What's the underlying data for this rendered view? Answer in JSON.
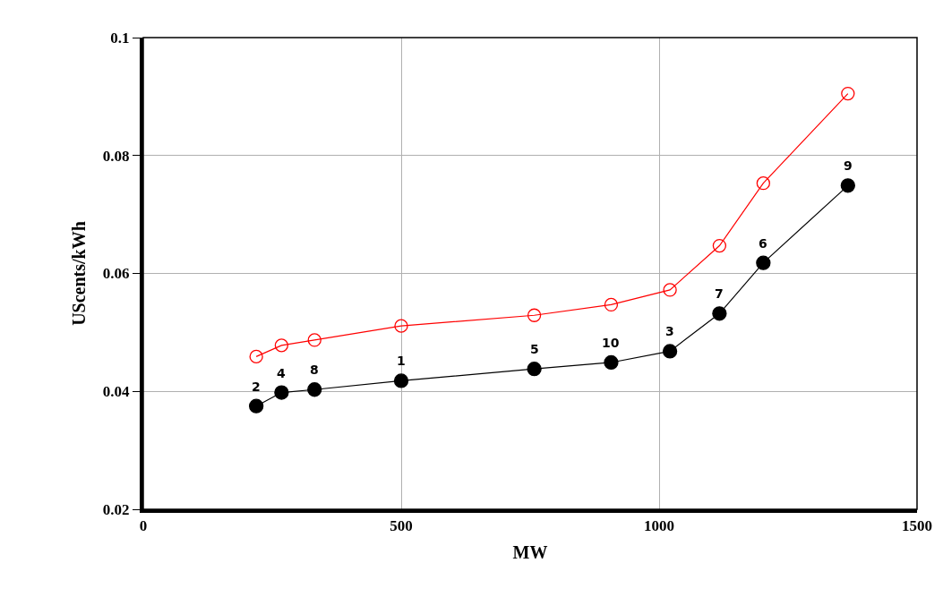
{
  "chart_data": {
    "type": "line",
    "xlabel": "MW",
    "ylabel": "UScents/kWh",
    "xlim": [
      0,
      1500
    ],
    "xticks": [
      0,
      500,
      1000,
      1500
    ],
    "ylim": [
      0.02,
      0.1
    ],
    "yticks": [
      0.02,
      0.04,
      0.06,
      0.08,
      0.1
    ],
    "grid": true,
    "line_style": "solid",
    "series": [
      {
        "color": "#ff0000",
        "marker": "circle-open",
        "x": [
          219,
          268,
          332,
          500,
          758,
          907,
          1021,
          1117,
          1202,
          1366
        ],
        "values": [
          0.0459,
          0.0478,
          0.0487,
          0.0511,
          0.0529,
          0.0547,
          0.0572,
          0.0647,
          0.0753,
          0.0905
        ]
      },
      {
        "color": "#000000",
        "marker": "circle",
        "x": [
          219,
          268,
          332,
          500,
          758,
          907,
          1021,
          1117,
          1202,
          1366
        ],
        "values": [
          0.0375,
          0.0398,
          0.0403,
          0.0418,
          0.0438,
          0.0449,
          0.0468,
          0.0532,
          0.0618,
          0.0749
        ]
      }
    ],
    "annotations": [
      {
        "text": "2",
        "x": 219,
        "y": 0.0375
      },
      {
        "text": "4",
        "x": 268,
        "y": 0.0398
      },
      {
        "text": "8",
        "x": 332,
        "y": 0.0403
      },
      {
        "text": "1",
        "x": 500,
        "y": 0.0418
      },
      {
        "text": "5",
        "x": 758,
        "y": 0.0438
      },
      {
        "text": "10",
        "x": 907,
        "y": 0.0449
      },
      {
        "text": "3",
        "x": 1021,
        "y": 0.0468
      },
      {
        "text": "7",
        "x": 1117,
        "y": 0.0532
      },
      {
        "text": "6",
        "x": 1202,
        "y": 0.0618
      },
      {
        "text": "9",
        "x": 1366,
        "y": 0.0749
      }
    ]
  }
}
